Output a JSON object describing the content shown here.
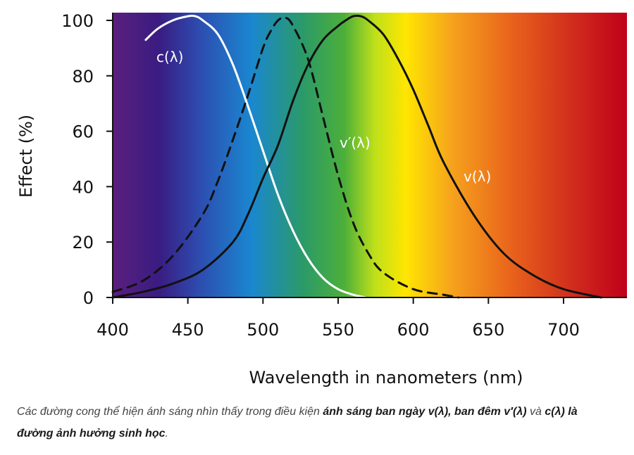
{
  "chart_data": {
    "type": "line",
    "xlabel": "Wavelength in nanometers (nm)",
    "ylabel": "Effect (%)",
    "xlim": [
      400,
      740
    ],
    "ylim": [
      0,
      102
    ],
    "xticks": [
      400,
      450,
      500,
      550,
      600,
      650,
      700
    ],
    "yticks": [
      0,
      20,
      40,
      60,
      80,
      100
    ],
    "series": [
      {
        "name": "c(λ)",
        "label": "c(λ)",
        "style": "solid",
        "color": "#ffffff",
        "x": [
          422,
          430,
          440,
          450,
          455,
          460,
          470,
          480,
          490,
          500,
          510,
          520,
          530,
          540,
          550,
          560,
          568
        ],
        "y": [
          93,
          97,
          100,
          101.5,
          101.5,
          100,
          95,
          84,
          69,
          53,
          37,
          24,
          14,
          7,
          3,
          1,
          0
        ]
      },
      {
        "name": "v′(λ)",
        "label": "v′(λ)",
        "style": "dashed",
        "color": "#111111",
        "x": [
          400,
          420,
          440,
          460,
          470,
          480,
          490,
          500,
          505,
          510,
          515,
          520,
          530,
          540,
          550,
          560,
          570,
          580,
          600,
          620,
          630
        ],
        "y": [
          2,
          6,
          15,
          30,
          42,
          57,
          73,
          90,
          96,
          100,
          101,
          98,
          86,
          65,
          44,
          27,
          16,
          9,
          3,
          1,
          0
        ]
      },
      {
        "name": "v(λ)",
        "label": "v(λ)",
        "style": "solid",
        "color": "#111111",
        "x": [
          400,
          420,
          440,
          460,
          480,
          490,
          500,
          510,
          520,
          530,
          540,
          550,
          555,
          560,
          565,
          570,
          580,
          590,
          600,
          610,
          620,
          640,
          660,
          680,
          700,
          725
        ],
        "y": [
          0,
          2,
          5,
          10,
          20,
          30,
          43,
          55,
          71,
          84,
          93,
          98,
          100,
          101.5,
          101.5,
          100,
          95,
          86,
          75,
          62,
          49,
          30,
          16,
          8,
          3,
          0
        ]
      }
    ]
  },
  "caption": {
    "part1": "Các đường cong thể hiện ánh sáng nhìn thấy trong điều kiện ",
    "bold1": "ánh sáng ban ngày v(λ), ban đêm v′(λ)",
    "part2": " và ",
    "bold2": "c(λ) là đường ảnh hưởng sinh học",
    "part3": "."
  },
  "colors": {
    "spectrum": [
      "#5b1f7e",
      "#3a1c82",
      "#2d4db0",
      "#1a87d0",
      "#2b9a68",
      "#4caf3a",
      "#bfe01a",
      "#ffe600",
      "#f6a21d",
      "#e8601c",
      "#cf2a1c",
      "#c0001a"
    ]
  }
}
